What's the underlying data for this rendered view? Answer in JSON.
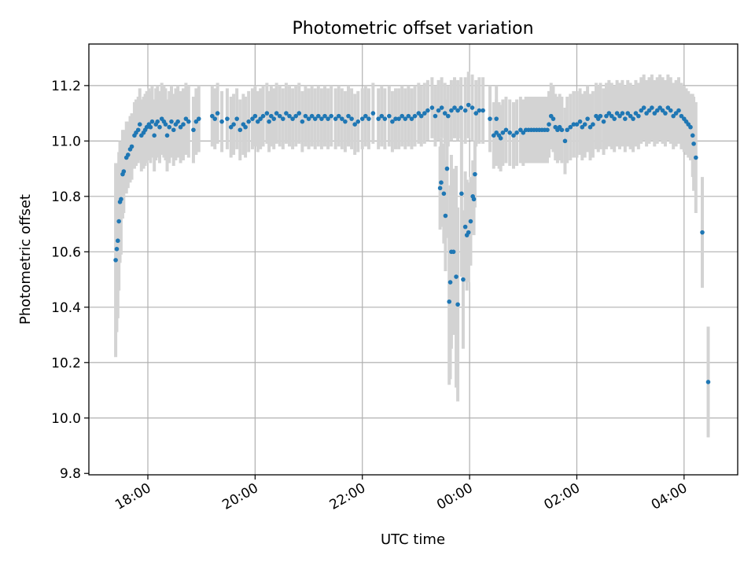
{
  "chart_data": {
    "type": "scatter",
    "title": "Photometric offset variation",
    "xlabel": "UTC time",
    "ylabel": "Photometric offset",
    "grid": true,
    "legend": "none",
    "xlim_hours": [
      16.9,
      29.0
    ],
    "ylim": [
      9.795,
      11.35
    ],
    "x_ticks": [
      {
        "hour": 18,
        "label": "18:00"
      },
      {
        "hour": 20,
        "label": "20:00"
      },
      {
        "hour": 22,
        "label": "22:00"
      },
      {
        "hour": 24,
        "label": "00:00"
      },
      {
        "hour": 26,
        "label": "02:00"
      },
      {
        "hour": 28,
        "label": "04:00"
      }
    ],
    "y_ticks": [
      {
        "value": 9.8,
        "label": "9.8"
      },
      {
        "value": 10.0,
        "label": "10.0"
      },
      {
        "value": 10.2,
        "label": "10.2"
      },
      {
        "value": 10.4,
        "label": "10.4"
      },
      {
        "value": 10.6,
        "label": "10.6"
      },
      {
        "value": 10.8,
        "label": "10.8"
      },
      {
        "value": 11.0,
        "label": "11.0"
      },
      {
        "value": 11.2,
        "label": "11.2"
      }
    ],
    "colors": {
      "points": "#1f77b4",
      "errorbars": "#d3d3d3",
      "grid": "#b0b0b0"
    },
    "series": [
      {
        "name": "offset",
        "points": [
          [
            17.4,
            10.57,
            0.35
          ],
          [
            17.42,
            10.61,
            0.3
          ],
          [
            17.44,
            10.64,
            0.28
          ],
          [
            17.46,
            10.71,
            0.25
          ],
          [
            17.48,
            10.78,
            0.22
          ],
          [
            17.5,
            10.79,
            0.2
          ],
          [
            17.53,
            10.88,
            0.16
          ],
          [
            17.55,
            10.89,
            0.15
          ],
          [
            17.6,
            10.94,
            0.13
          ],
          [
            17.63,
            10.95,
            0.12
          ],
          [
            17.67,
            10.97,
            0.12
          ],
          [
            17.7,
            10.98,
            0.12
          ],
          [
            17.75,
            11.02,
            0.12
          ],
          [
            17.78,
            11.03,
            0.12
          ],
          [
            17.82,
            11.04,
            0.12
          ],
          [
            17.85,
            11.06,
            0.13
          ],
          [
            17.88,
            11.02,
            0.13
          ],
          [
            17.92,
            11.03,
            0.13
          ],
          [
            17.95,
            11.04,
            0.13
          ],
          [
            17.98,
            11.05,
            0.13
          ],
          [
            18.02,
            11.06,
            0.13
          ],
          [
            18.05,
            11.05,
            0.13
          ],
          [
            18.08,
            11.07,
            0.13
          ],
          [
            18.12,
            11.02,
            0.13
          ],
          [
            18.15,
            11.06,
            0.13
          ],
          [
            18.18,
            11.07,
            0.13
          ],
          [
            18.22,
            11.05,
            0.13
          ],
          [
            18.26,
            11.08,
            0.13
          ],
          [
            18.3,
            11.07,
            0.13
          ],
          [
            18.33,
            11.06,
            0.13
          ],
          [
            18.36,
            11.02,
            0.13
          ],
          [
            18.4,
            11.05,
            0.13
          ],
          [
            18.44,
            11.07,
            0.13
          ],
          [
            18.48,
            11.04,
            0.13
          ],
          [
            18.52,
            11.06,
            0.13
          ],
          [
            18.56,
            11.07,
            0.13
          ],
          [
            18.61,
            11.05,
            0.13
          ],
          [
            18.66,
            11.06,
            0.13
          ],
          [
            18.71,
            11.08,
            0.13
          ],
          [
            18.76,
            11.07,
            0.13
          ],
          [
            18.85,
            11.04,
            0.12
          ],
          [
            18.9,
            11.07,
            0.12
          ],
          [
            18.95,
            11.08,
            0.12
          ],
          [
            19.2,
            11.09,
            0.11
          ],
          [
            19.25,
            11.08,
            0.11
          ],
          [
            19.3,
            11.1,
            0.11
          ],
          [
            19.38,
            11.07,
            0.11
          ],
          [
            19.48,
            11.08,
            0.11
          ],
          [
            19.55,
            11.05,
            0.11
          ],
          [
            19.6,
            11.06,
            0.11
          ],
          [
            19.66,
            11.08,
            0.11
          ],
          [
            19.72,
            11.04,
            0.11
          ],
          [
            19.78,
            11.06,
            0.11
          ],
          [
            19.82,
            11.05,
            0.11
          ],
          [
            19.88,
            11.07,
            0.11
          ],
          [
            19.95,
            11.08,
            0.11
          ],
          [
            20.0,
            11.09,
            0.11
          ],
          [
            20.05,
            11.07,
            0.11
          ],
          [
            20.1,
            11.08,
            0.11
          ],
          [
            20.15,
            11.09,
            0.11
          ],
          [
            20.22,
            11.1,
            0.11
          ],
          [
            20.26,
            11.07,
            0.11
          ],
          [
            20.3,
            11.09,
            0.11
          ],
          [
            20.35,
            11.08,
            0.11
          ],
          [
            20.4,
            11.1,
            0.11
          ],
          [
            20.46,
            11.09,
            0.11
          ],
          [
            20.52,
            11.08,
            0.11
          ],
          [
            20.58,
            11.1,
            0.11
          ],
          [
            20.64,
            11.09,
            0.11
          ],
          [
            20.7,
            11.08,
            0.11
          ],
          [
            20.76,
            11.09,
            0.11
          ],
          [
            20.82,
            11.1,
            0.11
          ],
          [
            20.88,
            11.07,
            0.11
          ],
          [
            20.94,
            11.09,
            0.11
          ],
          [
            21.0,
            11.08,
            0.11
          ],
          [
            21.06,
            11.09,
            0.11
          ],
          [
            21.12,
            11.08,
            0.11
          ],
          [
            21.18,
            11.09,
            0.11
          ],
          [
            21.24,
            11.08,
            0.11
          ],
          [
            21.3,
            11.09,
            0.11
          ],
          [
            21.36,
            11.08,
            0.11
          ],
          [
            21.42,
            11.09,
            0.11
          ],
          [
            21.5,
            11.08,
            0.11
          ],
          [
            21.56,
            11.09,
            0.11
          ],
          [
            21.62,
            11.08,
            0.11
          ],
          [
            21.68,
            11.07,
            0.11
          ],
          [
            21.74,
            11.09,
            0.11
          ],
          [
            21.8,
            11.08,
            0.11
          ],
          [
            21.86,
            11.06,
            0.11
          ],
          [
            21.92,
            11.07,
            0.11
          ],
          [
            22.0,
            11.08,
            0.11
          ],
          [
            22.06,
            11.09,
            0.11
          ],
          [
            22.12,
            11.08,
            0.11
          ],
          [
            22.2,
            11.1,
            0.11
          ],
          [
            22.3,
            11.08,
            0.11
          ],
          [
            22.36,
            11.09,
            0.11
          ],
          [
            22.42,
            11.08,
            0.11
          ],
          [
            22.5,
            11.09,
            0.11
          ],
          [
            22.56,
            11.07,
            0.11
          ],
          [
            22.62,
            11.08,
            0.11
          ],
          [
            22.68,
            11.08,
            0.11
          ],
          [
            22.74,
            11.09,
            0.11
          ],
          [
            22.8,
            11.08,
            0.11
          ],
          [
            22.86,
            11.09,
            0.11
          ],
          [
            22.92,
            11.08,
            0.11
          ],
          [
            22.98,
            11.09,
            0.11
          ],
          [
            23.05,
            11.1,
            0.11
          ],
          [
            23.1,
            11.09,
            0.11
          ],
          [
            23.16,
            11.1,
            0.11
          ],
          [
            23.22,
            11.11,
            0.11
          ],
          [
            23.3,
            11.12,
            0.11
          ],
          [
            23.36,
            11.09,
            0.11
          ],
          [
            23.42,
            11.11,
            0.11
          ],
          [
            23.48,
            11.12,
            0.11
          ],
          [
            23.54,
            11.1,
            0.11
          ],
          [
            23.6,
            11.09,
            0.11
          ],
          [
            23.66,
            11.11,
            0.11
          ],
          [
            23.72,
            11.12,
            0.11
          ],
          [
            23.78,
            11.11,
            0.11
          ],
          [
            23.84,
            11.12,
            0.11
          ],
          [
            23.92,
            11.11,
            0.12
          ],
          [
            23.98,
            11.13,
            0.12
          ],
          [
            24.05,
            11.12,
            0.12
          ],
          [
            24.12,
            11.1,
            0.12
          ],
          [
            24.18,
            11.11,
            0.12
          ],
          [
            24.25,
            11.11,
            0.12
          ],
          [
            24.38,
            11.08,
            0.12
          ],
          [
            24.5,
            11.08,
            0.12
          ]
        ],
        "dip_points": [
          [
            23.45,
            10.83,
            0.15
          ],
          [
            23.47,
            10.85,
            0.16
          ],
          [
            23.52,
            10.81,
            0.18
          ],
          [
            23.55,
            10.73,
            0.2
          ],
          [
            23.58,
            10.9,
            0.25
          ],
          [
            23.62,
            10.42,
            0.3
          ],
          [
            23.64,
            10.49,
            0.35
          ],
          [
            23.66,
            10.6,
            0.35
          ],
          [
            23.7,
            10.6,
            0.3
          ],
          [
            23.75,
            10.51,
            0.4
          ],
          [
            23.78,
            10.41,
            0.35
          ],
          [
            23.85,
            10.81,
            0.3
          ],
          [
            23.88,
            10.5,
            0.25
          ],
          [
            23.92,
            10.69,
            0.2
          ],
          [
            23.95,
            10.66,
            0.2
          ],
          [
            23.98,
            10.67,
            0.18
          ],
          [
            24.02,
            10.71,
            0.16
          ],
          [
            24.06,
            10.8,
            0.13
          ],
          [
            24.08,
            10.79,
            0.13
          ],
          [
            24.1,
            10.88,
            0.12
          ]
        ],
        "late_points": [
          [
            24.45,
            11.02,
            0.12
          ],
          [
            24.5,
            11.03,
            0.12
          ],
          [
            24.55,
            11.02,
            0.12
          ],
          [
            24.58,
            11.01,
            0.12
          ],
          [
            24.62,
            11.03,
            0.12
          ],
          [
            24.68,
            11.04,
            0.12
          ],
          [
            24.75,
            11.03,
            0.12
          ],
          [
            24.82,
            11.02,
            0.12
          ],
          [
            24.88,
            11.03,
            0.12
          ],
          [
            24.95,
            11.04,
            0.12
          ],
          [
            25.0,
            11.03,
            0.12
          ],
          [
            25.05,
            11.04,
            0.12
          ],
          [
            25.1,
            11.04,
            0.12
          ],
          [
            25.15,
            11.04,
            0.12
          ],
          [
            25.2,
            11.04,
            0.12
          ],
          [
            25.25,
            11.04,
            0.12
          ],
          [
            25.3,
            11.04,
            0.12
          ],
          [
            25.35,
            11.04,
            0.12
          ],
          [
            25.4,
            11.04,
            0.12
          ],
          [
            25.45,
            11.04,
            0.12
          ],
          [
            25.48,
            11.06,
            0.12
          ],
          [
            25.52,
            11.09,
            0.12
          ],
          [
            25.56,
            11.08,
            0.12
          ],
          [
            25.6,
            11.05,
            0.12
          ],
          [
            25.64,
            11.04,
            0.12
          ],
          [
            25.68,
            11.05,
            0.12
          ],
          [
            25.72,
            11.04,
            0.12
          ],
          [
            25.78,
            11.0,
            0.12
          ],
          [
            25.82,
            11.04,
            0.12
          ],
          [
            25.88,
            11.05,
            0.12
          ],
          [
            25.94,
            11.06,
            0.12
          ],
          [
            26.0,
            11.06,
            0.12
          ],
          [
            26.06,
            11.07,
            0.12
          ],
          [
            26.1,
            11.05,
            0.12
          ],
          [
            26.15,
            11.06,
            0.12
          ],
          [
            26.2,
            11.08,
            0.12
          ],
          [
            26.25,
            11.05,
            0.12
          ],
          [
            26.3,
            11.06,
            0.12
          ],
          [
            26.36,
            11.09,
            0.12
          ],
          [
            26.4,
            11.08,
            0.12
          ],
          [
            26.44,
            11.09,
            0.12
          ],
          [
            26.5,
            11.07,
            0.12
          ],
          [
            26.55,
            11.09,
            0.12
          ],
          [
            26.6,
            11.1,
            0.12
          ],
          [
            26.65,
            11.09,
            0.12
          ],
          [
            26.7,
            11.08,
            0.12
          ],
          [
            26.75,
            11.1,
            0.12
          ],
          [
            26.8,
            11.09,
            0.12
          ],
          [
            26.85,
            11.1,
            0.12
          ],
          [
            26.9,
            11.08,
            0.12
          ],
          [
            26.95,
            11.1,
            0.12
          ],
          [
            27.0,
            11.09,
            0.12
          ],
          [
            27.05,
            11.08,
            0.12
          ],
          [
            27.1,
            11.1,
            0.12
          ],
          [
            27.15,
            11.09,
            0.12
          ],
          [
            27.2,
            11.11,
            0.12
          ],
          [
            27.25,
            11.12,
            0.12
          ],
          [
            27.3,
            11.1,
            0.12
          ],
          [
            27.35,
            11.11,
            0.12
          ],
          [
            27.4,
            11.12,
            0.12
          ],
          [
            27.45,
            11.1,
            0.12
          ],
          [
            27.5,
            11.11,
            0.12
          ],
          [
            27.55,
            11.12,
            0.12
          ],
          [
            27.6,
            11.11,
            0.12
          ],
          [
            27.65,
            11.1,
            0.12
          ],
          [
            27.7,
            11.12,
            0.12
          ],
          [
            27.75,
            11.11,
            0.12
          ],
          [
            27.8,
            11.09,
            0.12
          ],
          [
            27.85,
            11.1,
            0.12
          ],
          [
            27.9,
            11.11,
            0.12
          ],
          [
            27.95,
            11.09,
            0.12
          ],
          [
            28.0,
            11.08,
            0.12
          ],
          [
            28.04,
            11.07,
            0.12
          ],
          [
            28.08,
            11.06,
            0.12
          ],
          [
            28.12,
            11.05,
            0.12
          ],
          [
            28.16,
            11.02,
            0.15
          ],
          [
            28.18,
            10.99,
            0.17
          ],
          [
            28.22,
            10.94,
            0.2
          ],
          [
            28.34,
            10.67,
            0.2
          ],
          [
            28.45,
            10.13,
            0.2
          ]
        ]
      }
    ]
  }
}
